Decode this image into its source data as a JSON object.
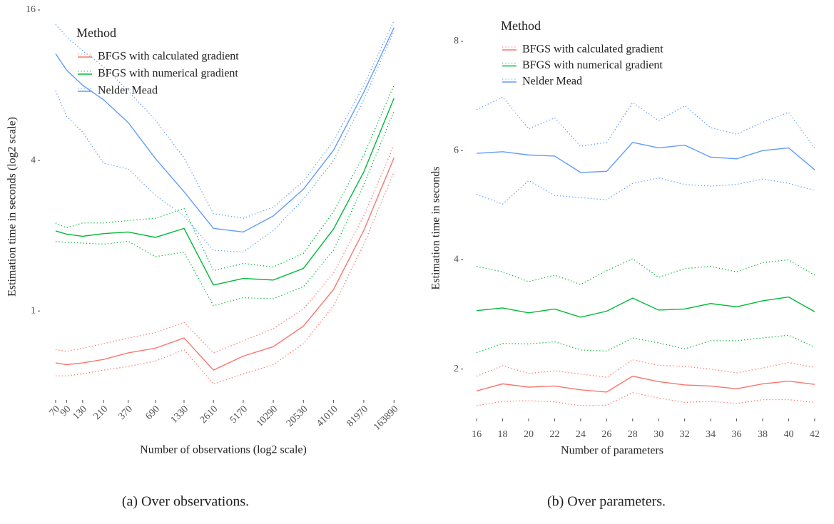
{
  "chart_data": [
    {
      "type": "line",
      "xscale": "log2",
      "yscale": "log2",
      "x_label": "Number of observations (log2 scale)",
      "y_label": "Estimation time in seconds (log2 scale)",
      "legend_title": "Method",
      "caption": "(a) Over observations.",
      "x": [
        70,
        90,
        130,
        210,
        370,
        690,
        1330,
        2610,
        5170,
        10290,
        20530,
        41010,
        81970,
        163890
      ],
      "xlim": [
        64,
        180000
      ],
      "xticks": [
        70,
        90,
        130,
        210,
        370,
        690,
        1330,
        2610,
        5170,
        10290,
        20530,
        41010,
        81970,
        163890
      ],
      "ylim": [
        0.48,
        16
      ],
      "yticks": [
        1,
        4,
        16
      ],
      "series": [
        {
          "name": "BFGS with calculated gradient",
          "color": "#f8766d",
          "values": [
            0.62,
            0.61,
            0.62,
            0.64,
            0.68,
            0.71,
            0.78,
            0.58,
            0.66,
            0.72,
            0.87,
            1.22,
            2.1,
            4.1
          ],
          "upper": [
            0.7,
            0.69,
            0.71,
            0.74,
            0.78,
            0.82,
            0.9,
            0.68,
            0.76,
            0.85,
            1.02,
            1.42,
            2.4,
            4.6
          ],
          "lower": [
            0.55,
            0.55,
            0.56,
            0.58,
            0.6,
            0.63,
            0.7,
            0.51,
            0.56,
            0.61,
            0.74,
            1.05,
            1.85,
            3.6
          ]
        },
        {
          "name": "BFGS with numerical gradient",
          "color": "#00ba38",
          "values": [
            2.09,
            2.03,
            1.99,
            2.04,
            2.07,
            1.97,
            2.14,
            1.27,
            1.35,
            1.33,
            1.48,
            2.13,
            3.6,
            7.1
          ],
          "upper": [
            2.25,
            2.15,
            2.25,
            2.25,
            2.3,
            2.35,
            2.57,
            1.45,
            1.55,
            1.5,
            1.7,
            2.5,
            4.2,
            8.0
          ],
          "lower": [
            1.9,
            1.88,
            1.87,
            1.85,
            1.9,
            1.65,
            1.72,
            1.05,
            1.13,
            1.12,
            1.25,
            1.75,
            3.2,
            6.3
          ]
        },
        {
          "name": "Nelder Mead",
          "color": "#619cff",
          "values": [
            10.7,
            9.2,
            8.0,
            7.0,
            5.67,
            4.07,
            3.0,
            2.14,
            2.07,
            2.4,
            3.07,
            4.4,
            7.5,
            13.6
          ],
          "upper": [
            14.0,
            12.5,
            11.0,
            9.5,
            7.6,
            5.8,
            4.1,
            2.45,
            2.35,
            2.6,
            3.3,
            4.8,
            8.0,
            14.5
          ],
          "lower": [
            7.6,
            6.0,
            5.2,
            3.9,
            3.7,
            2.9,
            2.4,
            1.75,
            1.72,
            2.1,
            2.8,
            4.0,
            7.0,
            13.2
          ]
        }
      ]
    },
    {
      "type": "line",
      "xscale": "linear",
      "yscale": "linear",
      "x_label": "Number of parameters",
      "y_label": "Estimation time in seconds",
      "legend_title": "Method",
      "caption": "(b) Over parameters.",
      "x": [
        16,
        18,
        20,
        22,
        24,
        26,
        28,
        30,
        32,
        34,
        36,
        38,
        40,
        42
      ],
      "xlim": [
        15.5,
        42.5
      ],
      "xticks": [
        16,
        18,
        20,
        22,
        24,
        26,
        28,
        30,
        32,
        34,
        36,
        38,
        40,
        42
      ],
      "ylim": [
        1.2,
        8.2
      ],
      "yticks": [
        2,
        4,
        6,
        8
      ],
      "series": [
        {
          "name": "BFGS with calculated gradient",
          "color": "#f8766d",
          "values": [
            1.6,
            1.73,
            1.67,
            1.69,
            1.62,
            1.58,
            1.87,
            1.77,
            1.71,
            1.69,
            1.64,
            1.73,
            1.78,
            1.72
          ],
          "upper": [
            1.87,
            2.06,
            1.92,
            1.97,
            1.91,
            1.85,
            2.17,
            2.07,
            2.05,
            2.0,
            1.93,
            2.02,
            2.12,
            2.03
          ],
          "lower": [
            1.33,
            1.41,
            1.42,
            1.4,
            1.33,
            1.34,
            1.57,
            1.47,
            1.39,
            1.41,
            1.37,
            1.44,
            1.44,
            1.39
          ]
        },
        {
          "name": "BFGS with numerical gradient",
          "color": "#00ba38",
          "values": [
            3.07,
            3.12,
            3.03,
            3.1,
            2.95,
            3.06,
            3.3,
            3.08,
            3.1,
            3.2,
            3.14,
            3.25,
            3.32,
            3.05
          ],
          "upper": [
            3.88,
            3.78,
            3.6,
            3.72,
            3.55,
            3.8,
            4.02,
            3.68,
            3.84,
            3.88,
            3.78,
            3.95,
            4.0,
            3.72
          ],
          "lower": [
            2.3,
            2.47,
            2.46,
            2.5,
            2.35,
            2.33,
            2.57,
            2.48,
            2.37,
            2.52,
            2.52,
            2.57,
            2.62,
            2.4
          ]
        },
        {
          "name": "Nelder Mead",
          "color": "#619cff",
          "values": [
            5.95,
            5.98,
            5.92,
            5.9,
            5.6,
            5.62,
            6.15,
            6.05,
            6.1,
            5.88,
            5.85,
            6.0,
            6.05,
            5.65
          ],
          "upper": [
            6.75,
            6.98,
            6.4,
            6.6,
            6.08,
            6.15,
            6.88,
            6.55,
            6.82,
            6.42,
            6.3,
            6.52,
            6.7,
            6.05
          ],
          "lower": [
            5.2,
            5.02,
            5.45,
            5.18,
            5.14,
            5.1,
            5.4,
            5.5,
            5.38,
            5.35,
            5.38,
            5.48,
            5.4,
            5.27
          ]
        }
      ]
    }
  ]
}
